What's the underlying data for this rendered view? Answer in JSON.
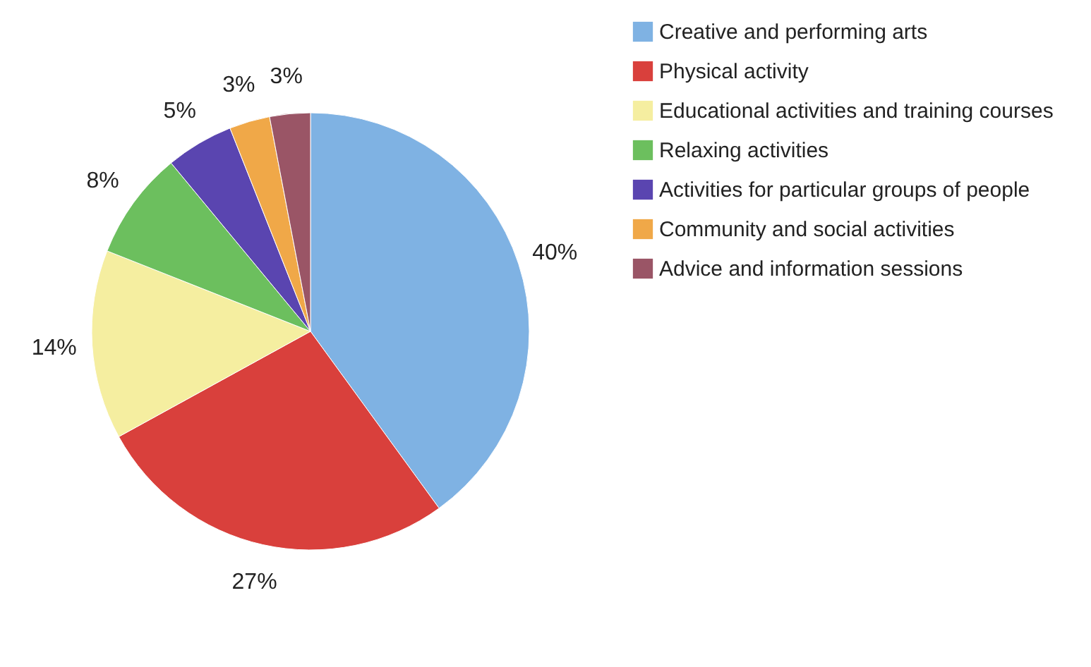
{
  "chart_data": {
    "type": "pie",
    "categories": [
      "Creative and performing arts",
      "Physical activity",
      "Educational activities and training courses",
      "Relaxing activities",
      "Activities for particular groups of people",
      "Community and social activities",
      "Advice and information sessions"
    ],
    "values": [
      40,
      27,
      14,
      8,
      5,
      3,
      3
    ],
    "colors": [
      "#7fb2e3",
      "#d9403c",
      "#f5eea0",
      "#6cbf5e",
      "#5a45b0",
      "#f0a848",
      "#9a5566"
    ],
    "value_labels": [
      "40%",
      "27%",
      "14%",
      "8%",
      "5%",
      "3%",
      "3%"
    ],
    "legend": "right"
  }
}
